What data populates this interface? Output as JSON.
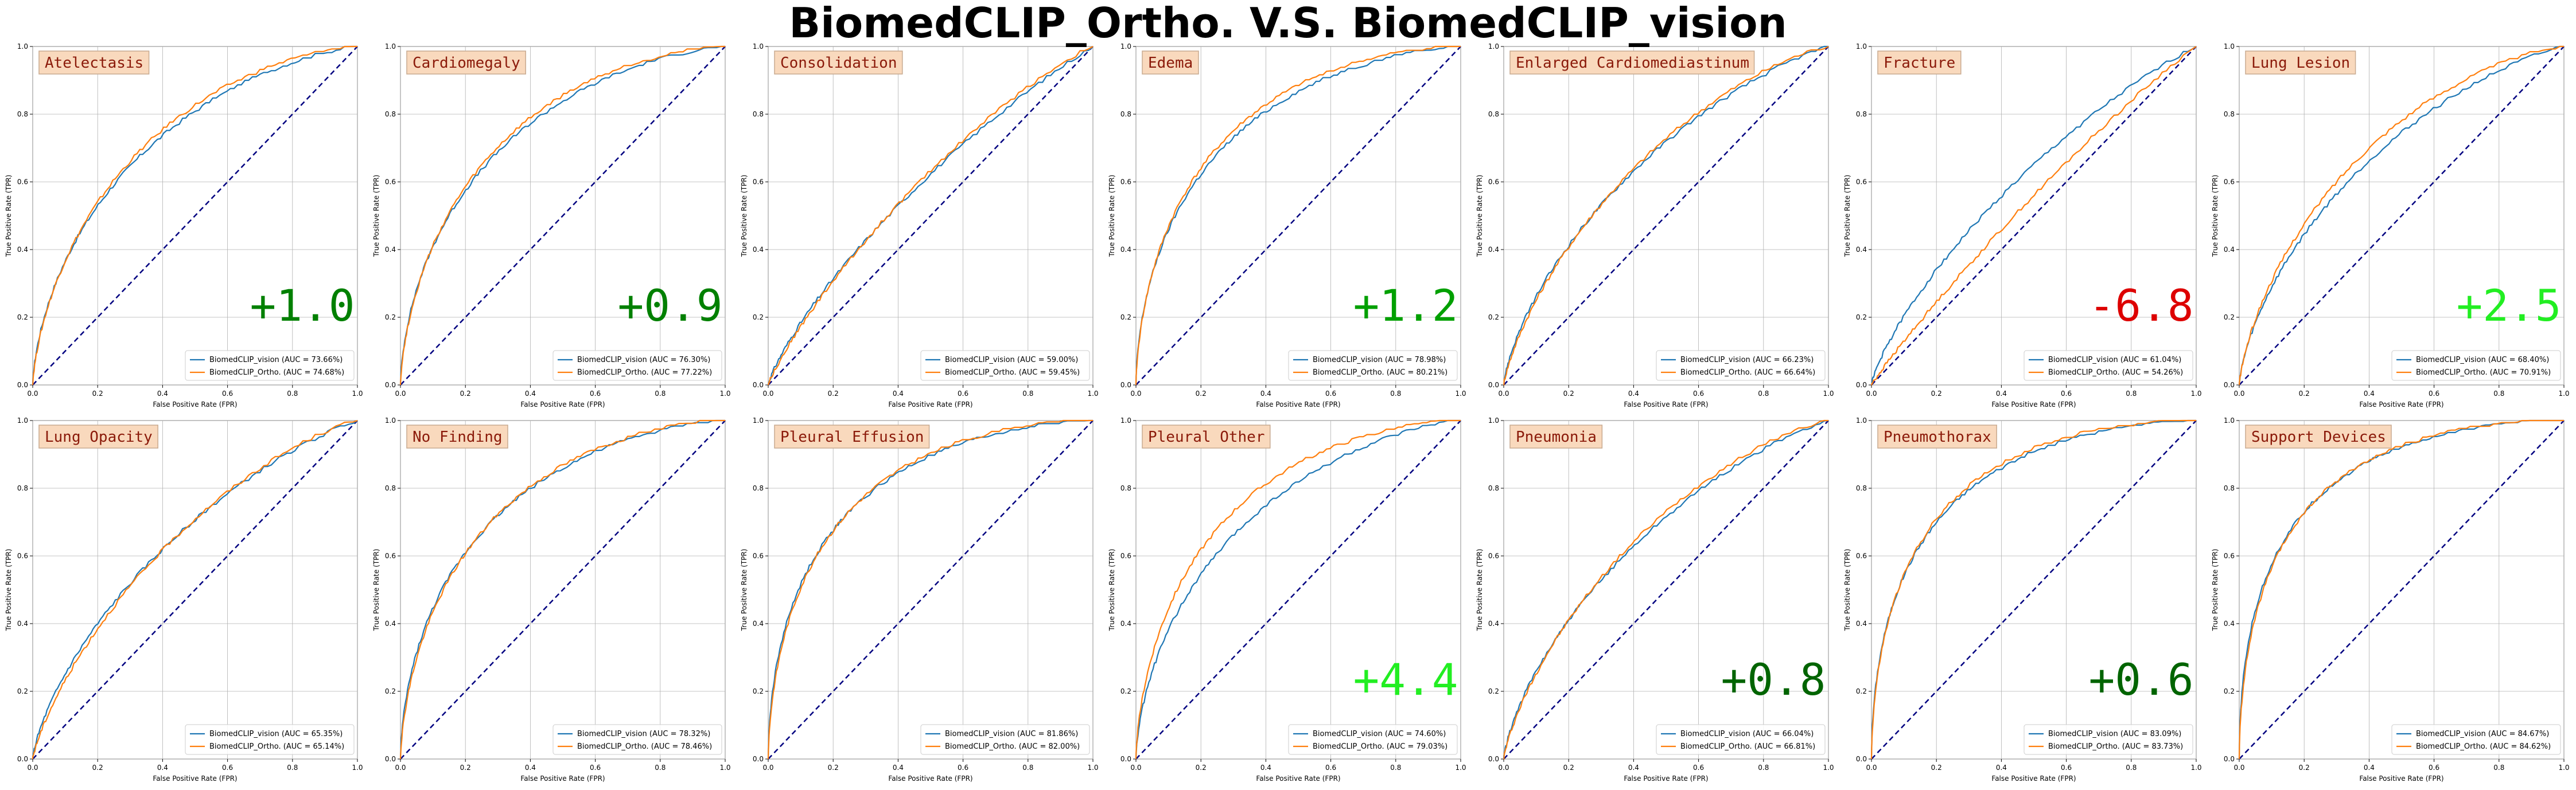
{
  "title": "BiomedCLIP_Ortho. V.S. BiomedCLIP_vision",
  "colors": {
    "vision": "#1f77b4",
    "ortho": "#ff7f0e",
    "chance": "#000080",
    "label_bg": "#f9d9bd",
    "label_border": "#c8aa90",
    "label_text": "#8b1a0a"
  },
  "chart_data": {
    "type": "line",
    "grid": true,
    "layout": "2 rows x 7 columns",
    "xlabel": "False Positive Rate (FPR)",
    "ylabel": "True Positive Rate (TPR)",
    "xlim": [
      0,
      1
    ],
    "ylim": [
      0,
      1
    ],
    "xticks": [
      "0.0",
      "0.2",
      "0.4",
      "0.6",
      "0.8",
      "1.0"
    ],
    "yticks": [
      "0.0",
      "0.2",
      "0.4",
      "0.6",
      "0.8",
      "1.0"
    ],
    "legend_position": "lower right",
    "panels": [
      {
        "category": "Atelectasis",
        "delta": "+1.0",
        "delta_color": "#008000",
        "series": [
          {
            "name": "BiomedCLIP_vision (AUC = 73.66%)",
            "auc": 73.66
          },
          {
            "name": "BiomedCLIP_Ortho. (AUC = 74.68%)",
            "auc": 74.68
          }
        ]
      },
      {
        "category": "Cardiomegaly",
        "delta": "+0.9",
        "delta_color": "#008000",
        "series": [
          {
            "name": "BiomedCLIP_vision (AUC = 76.30%)",
            "auc": 76.3
          },
          {
            "name": "BiomedCLIP_Ortho. (AUC = 77.22%)",
            "auc": 77.22
          }
        ]
      },
      {
        "category": "Consolidation",
        "delta": "",
        "delta_color": "#008000",
        "series": [
          {
            "name": "BiomedCLIP_vision (AUC = 59.00%)",
            "auc": 59.0
          },
          {
            "name": "BiomedCLIP_Ortho. (AUC = 59.45%)",
            "auc": 59.45
          }
        ]
      },
      {
        "category": "Edema",
        "delta": "+1.2",
        "delta_color": "#00a000",
        "series": [
          {
            "name": "BiomedCLIP_vision (AUC = 78.98%)",
            "auc": 78.98
          },
          {
            "name": "BiomedCLIP_Ortho. (AUC = 80.21%)",
            "auc": 80.21
          }
        ]
      },
      {
        "category": "Enlarged Cardiomediastinum",
        "delta": "",
        "delta_color": "#008000",
        "series": [
          {
            "name": "BiomedCLIP_vision (AUC = 66.23%)",
            "auc": 66.23
          },
          {
            "name": "BiomedCLIP_Ortho. (AUC = 66.64%)",
            "auc": 66.64
          }
        ]
      },
      {
        "category": "Fracture",
        "delta": "-6.8",
        "delta_color": "#dd0000",
        "series": [
          {
            "name": "BiomedCLIP_vision (AUC = 61.04%)",
            "auc": 61.04
          },
          {
            "name": "BiomedCLIP_Ortho. (AUC = 54.26%)",
            "auc": 54.26
          }
        ]
      },
      {
        "category": "Lung Lesion",
        "delta": "+2.5",
        "delta_color": "#22ee22",
        "series": [
          {
            "name": "BiomedCLIP_vision (AUC = 68.40%)",
            "auc": 68.4
          },
          {
            "name": "BiomedCLIP_Ortho. (AUC = 70.91%)",
            "auc": 70.91
          }
        ]
      },
      {
        "category": "Lung Opacity",
        "delta": "",
        "delta_color": "#008000",
        "series": [
          {
            "name": "BiomedCLIP_vision (AUC = 65.35%)",
            "auc": 65.35
          },
          {
            "name": "BiomedCLIP_Ortho. (AUC = 65.14%)",
            "auc": 65.14
          }
        ]
      },
      {
        "category": "No Finding",
        "delta": "",
        "delta_color": "#008000",
        "series": [
          {
            "name": "BiomedCLIP_vision (AUC = 78.32%)",
            "auc": 78.32
          },
          {
            "name": "BiomedCLIP_Ortho. (AUC = 78.46%)",
            "auc": 78.46
          }
        ]
      },
      {
        "category": "Pleural Effusion",
        "delta": "",
        "delta_color": "#008000",
        "series": [
          {
            "name": "BiomedCLIP_vision (AUC = 81.86%)",
            "auc": 81.86
          },
          {
            "name": "BiomedCLIP_Ortho. (AUC = 82.00%)",
            "auc": 82.0
          }
        ]
      },
      {
        "category": "Pleural Other",
        "delta": "+4.4",
        "delta_color": "#22ee22",
        "series": [
          {
            "name": "BiomedCLIP_vision (AUC = 74.60%)",
            "auc": 74.6
          },
          {
            "name": "BiomedCLIP_Ortho. (AUC = 79.03%)",
            "auc": 79.03
          }
        ]
      },
      {
        "category": "Pneumonia",
        "delta": "+0.8",
        "delta_color": "#006400",
        "series": [
          {
            "name": "BiomedCLIP_vision (AUC = 66.04%)",
            "auc": 66.04
          },
          {
            "name": "BiomedCLIP_Ortho. (AUC = 66.81%)",
            "auc": 66.81
          }
        ]
      },
      {
        "category": "Pneumothorax",
        "delta": "+0.6",
        "delta_color": "#006400",
        "series": [
          {
            "name": "BiomedCLIP_vision (AUC = 83.09%)",
            "auc": 83.09
          },
          {
            "name": "BiomedCLIP_Ortho. (AUC = 83.73%)",
            "auc": 83.73
          }
        ]
      },
      {
        "category": "Support Devices",
        "delta": "",
        "delta_color": "#008000",
        "series": [
          {
            "name": "BiomedCLIP_vision (AUC = 84.67%)",
            "auc": 84.67
          },
          {
            "name": "BiomedCLIP_Ortho. (AUC = 84.62%)",
            "auc": 84.62
          }
        ]
      }
    ]
  }
}
